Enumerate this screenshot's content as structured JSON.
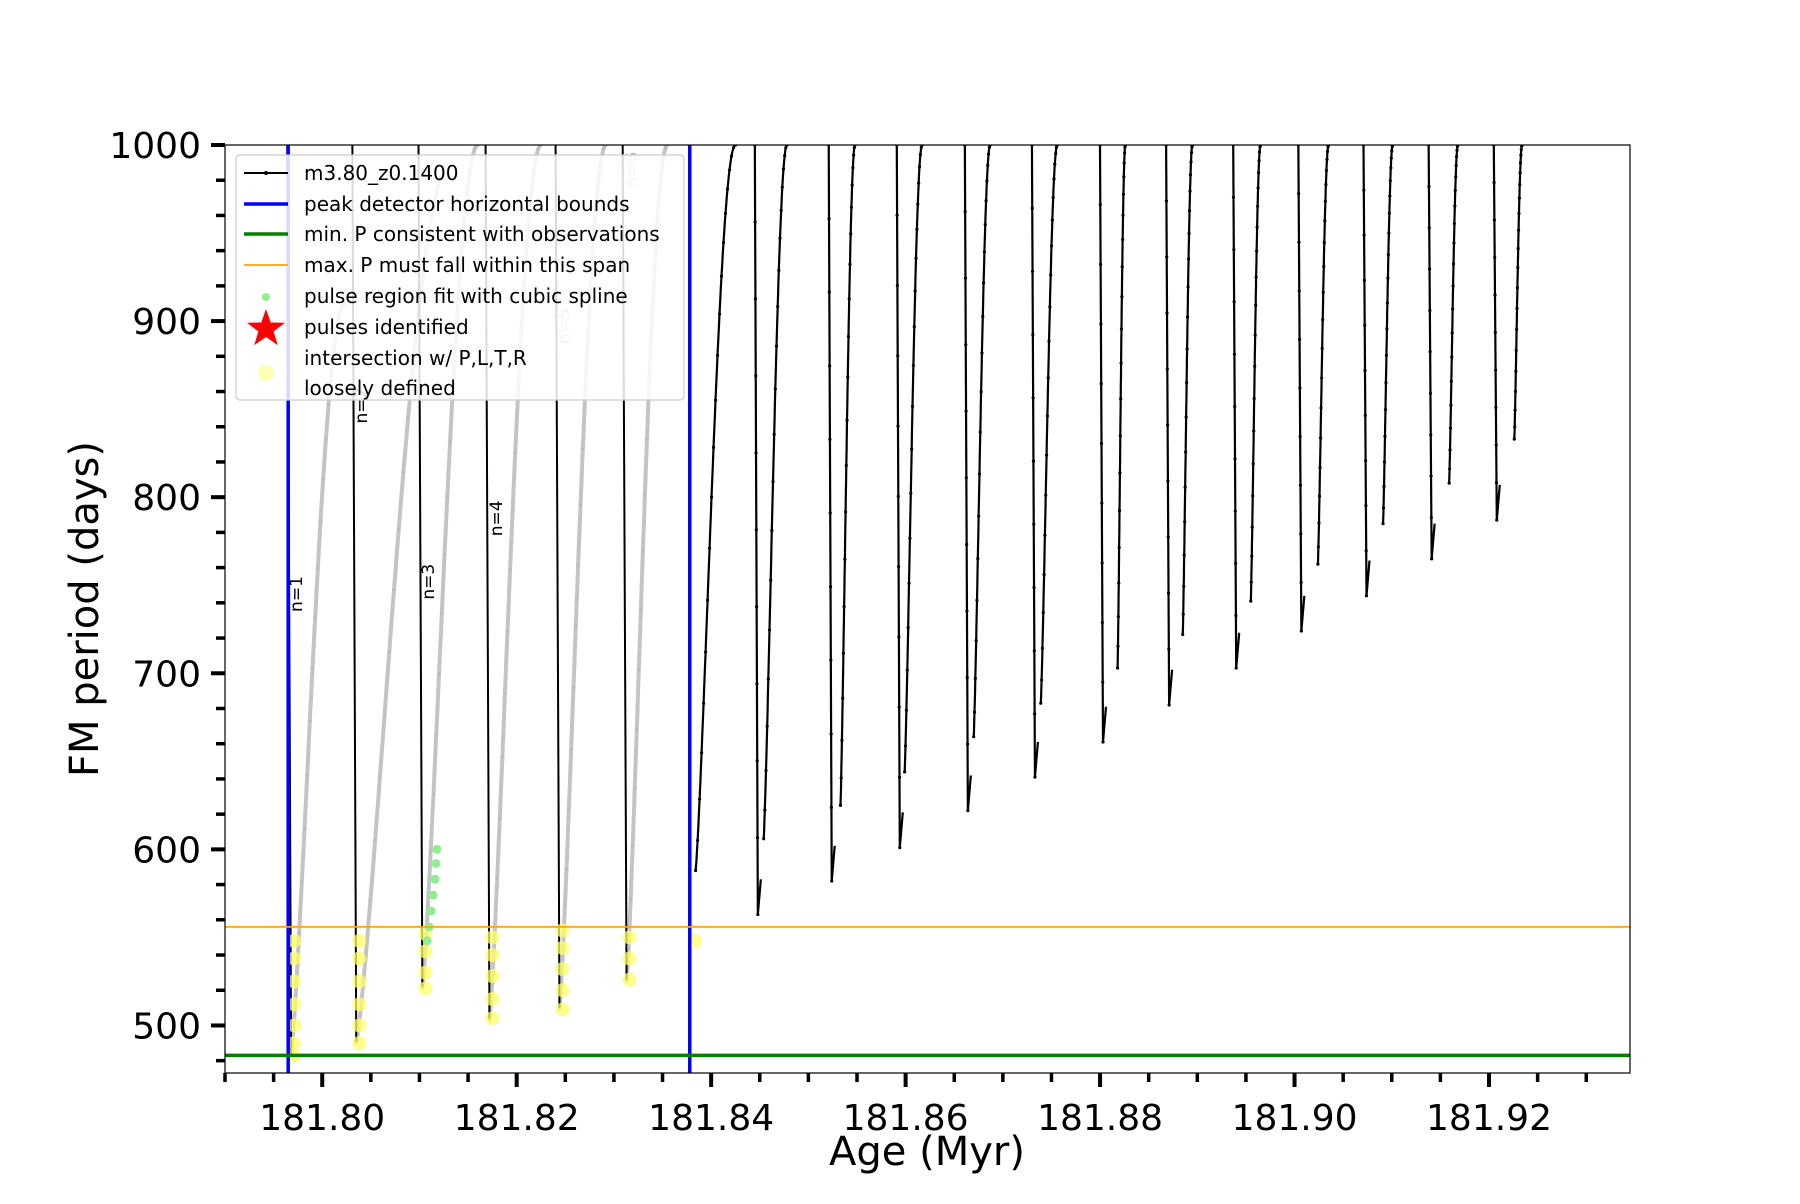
{
  "chart_data": {
    "type": "line",
    "title": "",
    "xlabel": "Age (Myr)",
    "ylabel": "FM period (days)",
    "xlim": [
      181.79,
      181.9345
    ],
    "ylim": [
      473,
      1000
    ],
    "x_ticks": [
      181.8,
      181.82,
      181.84,
      181.86,
      181.88,
      181.9,
      181.92
    ],
    "x_tick_labels": [
      "181.80",
      "181.82",
      "181.84",
      "181.86",
      "181.88",
      "181.90",
      "181.92"
    ],
    "y_ticks": [
      500,
      600,
      700,
      800,
      900,
      1000
    ],
    "y_tick_labels": [
      "500",
      "600",
      "700",
      "800",
      "900",
      "1000"
    ],
    "grid": false,
    "legend_position": "upper-left",
    "legend": [
      {
        "label": "m3.80_z0.1400",
        "kind": "line-dot",
        "color": "#000000"
      },
      {
        "label": "peak detector horizontal bounds",
        "kind": "line-thick",
        "color": "#0000ff"
      },
      {
        "label": "min. P consistent with observations",
        "kind": "line-thick",
        "color": "#008000"
      },
      {
        "label": "max. P must fall within this span",
        "kind": "line-thin",
        "color": "#ffa500"
      },
      {
        "label": "pulse region fit with cubic spline",
        "kind": "dot",
        "color": "#90ee90"
      },
      {
        "label": "pulses identified",
        "kind": "star",
        "color": "#ff0000"
      },
      {
        "label": "intersection w/ P,L,T,R",
        "label2": "loosely defined",
        "kind": "circle",
        "color": "#ffff99"
      }
    ],
    "reference_lines": {
      "peak_detector_bounds_x": [
        181.7965,
        181.8378
      ],
      "min_period_y": 483,
      "max_period_y": 556
    },
    "pulse_annotations": [
      {
        "label": "n=1",
        "x": 181.7975,
        "y": 745
      },
      {
        "label": "n=2",
        "x": 181.8042,
        "y": 852
      },
      {
        "label": "n=3",
        "x": 181.8111,
        "y": 752
      },
      {
        "label": "n=4",
        "x": 181.8181,
        "y": 788
      },
      {
        "label": "n=5",
        "x": 181.825,
        "y": 897
      },
      {
        "label": "n=6",
        "x": 181.832,
        "y": 986
      }
    ],
    "pulses": [
      {
        "x_min": 181.7968,
        "min": 483,
        "peak": 910,
        "x_peak": 181.8023,
        "gray": true
      },
      {
        "x_min": 181.8035,
        "min": 490,
        "peak": 990,
        "x_peak": 181.8132,
        "gray": true
      },
      {
        "x_min": 181.8103,
        "min": 521,
        "peak": 1000,
        "x_peak": 181.816,
        "gray": true
      },
      {
        "x_min": 181.8172,
        "min": 503,
        "peak": 1000,
        "x_peak": 181.8225,
        "gray": true
      },
      {
        "x_min": 181.8244,
        "min": 509,
        "peak": 1000,
        "x_peak": 181.8292,
        "gray": true
      },
      {
        "x_min": 181.8313,
        "min": 525,
        "peak": 1000,
        "x_peak": 181.8355,
        "gray": true
      },
      {
        "x_min": 181.8384,
        "min": 588,
        "peak": 1000,
        "x_peak": 181.8425
      },
      {
        "x_min": 181.8454,
        "min": 606,
        "peak": 1000,
        "x_peak": 181.8478
      },
      {
        "x_min": 181.8533,
        "min": 625,
        "peak": 1000,
        "x_peak": 181.8548
      },
      {
        "x_min": 181.8599,
        "min": 644,
        "peak": 1000,
        "x_peak": 181.8617
      },
      {
        "x_min": 181.867,
        "min": 664,
        "peak": 1000,
        "x_peak": 181.8687
      },
      {
        "x_min": 181.8739,
        "min": 683,
        "peak": 1000,
        "x_peak": 181.8756
      },
      {
        "x_min": 181.8818,
        "min": 703,
        "peak": 1000,
        "x_peak": 181.8826
      },
      {
        "x_min": 181.8885,
        "min": 722,
        "peak": 1000,
        "x_peak": 181.8895
      },
      {
        "x_min": 181.8955,
        "min": 741,
        "peak": 1000,
        "x_peak": 181.8965
      },
      {
        "x_min": 181.9024,
        "min": 762,
        "peak": 1000,
        "x_peak": 181.9035
      },
      {
        "x_min": 181.9091,
        "min": 785,
        "peak": 1000,
        "x_peak": 181.9101
      },
      {
        "x_min": 181.9159,
        "min": 808,
        "peak": 1000,
        "x_peak": 181.9168
      },
      {
        "x_min": 181.9226,
        "min": 833,
        "peak": 1000,
        "x_peak": 181.9234
      }
    ],
    "spikes": [
      {
        "x": 181.8448,
        "y": 563
      },
      {
        "x": 181.8524,
        "y": 582
      },
      {
        "x": 181.8594,
        "y": 601
      },
      {
        "x": 181.8664,
        "y": 622
      },
      {
        "x": 181.8733,
        "y": 641
      },
      {
        "x": 181.8803,
        "y": 661
      },
      {
        "x": 181.8871,
        "y": 682
      },
      {
        "x": 181.894,
        "y": 703
      },
      {
        "x": 181.9007,
        "y": 724
      },
      {
        "x": 181.9074,
        "y": 744
      },
      {
        "x": 181.9141,
        "y": 765
      },
      {
        "x": 181.9208,
        "y": 787
      }
    ],
    "spline_fit_points": {
      "x": [
        181.8108,
        181.811,
        181.8112,
        181.8114,
        181.8116,
        181.8117,
        181.8118
      ],
      "y": [
        548,
        556,
        565,
        574,
        583,
        592,
        600
      ]
    },
    "intersections": [
      {
        "x": 181.7968,
        "y": [
          483,
          490,
          500,
          512,
          525,
          538,
          548
        ]
      },
      {
        "x": 181.8035,
        "y": [
          490,
          500,
          512,
          525,
          538,
          548
        ]
      },
      {
        "x": 181.8103,
        "y": [
          521,
          530,
          542,
          552
        ]
      },
      {
        "x": 181.8172,
        "y": [
          504,
          515,
          528,
          540,
          550
        ]
      },
      {
        "x": 181.8244,
        "y": [
          509,
          520,
          532,
          544,
          554
        ]
      },
      {
        "x": 181.8313,
        "y": [
          526,
          538,
          550
        ]
      },
      {
        "x": 181.838,
        "y": [
          548
        ]
      }
    ]
  }
}
